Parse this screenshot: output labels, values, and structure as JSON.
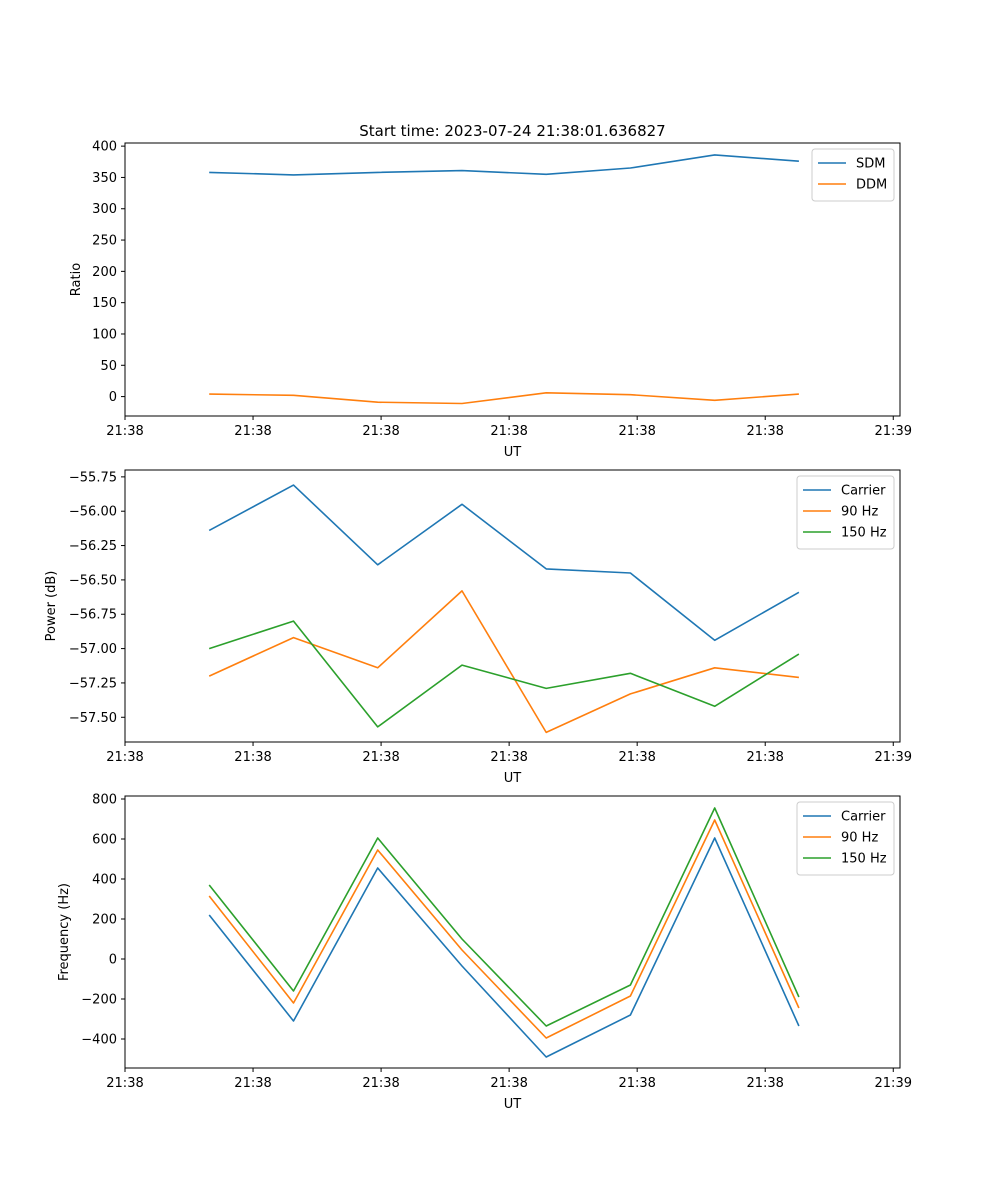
{
  "figure": {
    "title": "Start time: 2023-07-24 21:38:01.636827"
  },
  "colors": {
    "blue": "#1f77b4",
    "orange": "#ff7f0e",
    "green": "#2ca02c"
  },
  "chart_data": [
    {
      "type": "line",
      "title": "Start time: 2023-07-24 21:38:01.636827",
      "xlabel": "UT",
      "ylabel": "Ratio",
      "x": [
        1,
        2,
        3,
        4,
        5,
        6,
        7,
        8
      ],
      "xlim": [
        0,
        9.2
      ],
      "x_ticks": [
        0,
        1.52,
        3.04,
        4.56,
        6.08,
        7.6,
        9.12
      ],
      "x_tick_labels": [
        "21:38",
        "21:38",
        "21:38",
        "21:38",
        "21:38",
        "21:38",
        "21:39"
      ],
      "ylim": [
        -31,
        405
      ],
      "y_ticks": [
        0,
        50,
        100,
        150,
        200,
        250,
        300,
        350,
        400
      ],
      "y_tick_labels": [
        "0",
        "50",
        "100",
        "150",
        "200",
        "250",
        "300",
        "350",
        "400"
      ],
      "legend": "top-right",
      "series": [
        {
          "name": "SDM",
          "color": "#1f77b4",
          "values": [
            358,
            354,
            358,
            361,
            355,
            365,
            386,
            376
          ]
        },
        {
          "name": "DDM",
          "color": "#ff7f0e",
          "values": [
            4,
            2,
            -9,
            -11,
            6,
            3,
            -6,
            4
          ]
        }
      ]
    },
    {
      "type": "line",
      "xlabel": "UT",
      "ylabel": "Power (dB)",
      "x": [
        1,
        2,
        3,
        4,
        5,
        6,
        7,
        8
      ],
      "xlim": [
        0,
        9.2
      ],
      "x_ticks": [
        0,
        1.52,
        3.04,
        4.56,
        6.08,
        7.6,
        9.12
      ],
      "x_tick_labels": [
        "21:38",
        "21:38",
        "21:38",
        "21:38",
        "21:38",
        "21:38",
        "21:39"
      ],
      "ylim": [
        -57.68,
        -55.7
      ],
      "y_ticks": [
        -57.5,
        -57.25,
        -57.0,
        -56.75,
        -56.5,
        -56.25,
        -56.0,
        -55.75
      ],
      "y_tick_labels": [
        "−57.50",
        "−57.25",
        "−57.00",
        "−56.75",
        "−56.50",
        "−56.25",
        "−56.00",
        "−55.75"
      ],
      "legend": "top-right",
      "series": [
        {
          "name": "Carrier",
          "color": "#1f77b4",
          "values": [
            -56.14,
            -55.81,
            -56.39,
            -55.95,
            -56.42,
            -56.45,
            -56.94,
            -56.59
          ]
        },
        {
          "name": "90 Hz",
          "color": "#ff7f0e",
          "values": [
            -57.2,
            -56.92,
            -57.14,
            -56.58,
            -57.61,
            -57.33,
            -57.14,
            -57.21
          ]
        },
        {
          "name": "150 Hz",
          "color": "#2ca02c",
          "values": [
            -57.0,
            -56.8,
            -57.57,
            -57.12,
            -57.29,
            -57.18,
            -57.42,
            -57.04
          ]
        }
      ]
    },
    {
      "type": "line",
      "xlabel": "UT",
      "ylabel": "Frequency (Hz)",
      "x": [
        1,
        2,
        3,
        4,
        5,
        6,
        7,
        8
      ],
      "xlim": [
        0,
        9.2
      ],
      "x_ticks": [
        0,
        1.52,
        3.04,
        4.56,
        6.08,
        7.6,
        9.12
      ],
      "x_tick_labels": [
        "21:38",
        "21:38",
        "21:38",
        "21:38",
        "21:38",
        "21:38",
        "21:39"
      ],
      "ylim": [
        -545,
        815
      ],
      "y_ticks": [
        -400,
        -200,
        0,
        200,
        400,
        600,
        800
      ],
      "y_tick_labels": [
        "−400",
        "−200",
        "0",
        "200",
        "400",
        "600",
        "800"
      ],
      "legend": "top-right",
      "series": [
        {
          "name": "Carrier",
          "color": "#1f77b4",
          "values": [
            220,
            -310,
            455,
            -35,
            -490,
            -280,
            605,
            -335
          ]
        },
        {
          "name": "90 Hz",
          "color": "#ff7f0e",
          "values": [
            315,
            -220,
            545,
            45,
            -395,
            -185,
            695,
            -245
          ]
        },
        {
          "name": "150 Hz",
          "color": "#2ca02c",
          "values": [
            370,
            -160,
            605,
            100,
            -335,
            -130,
            755,
            -190
          ]
        }
      ]
    }
  ]
}
